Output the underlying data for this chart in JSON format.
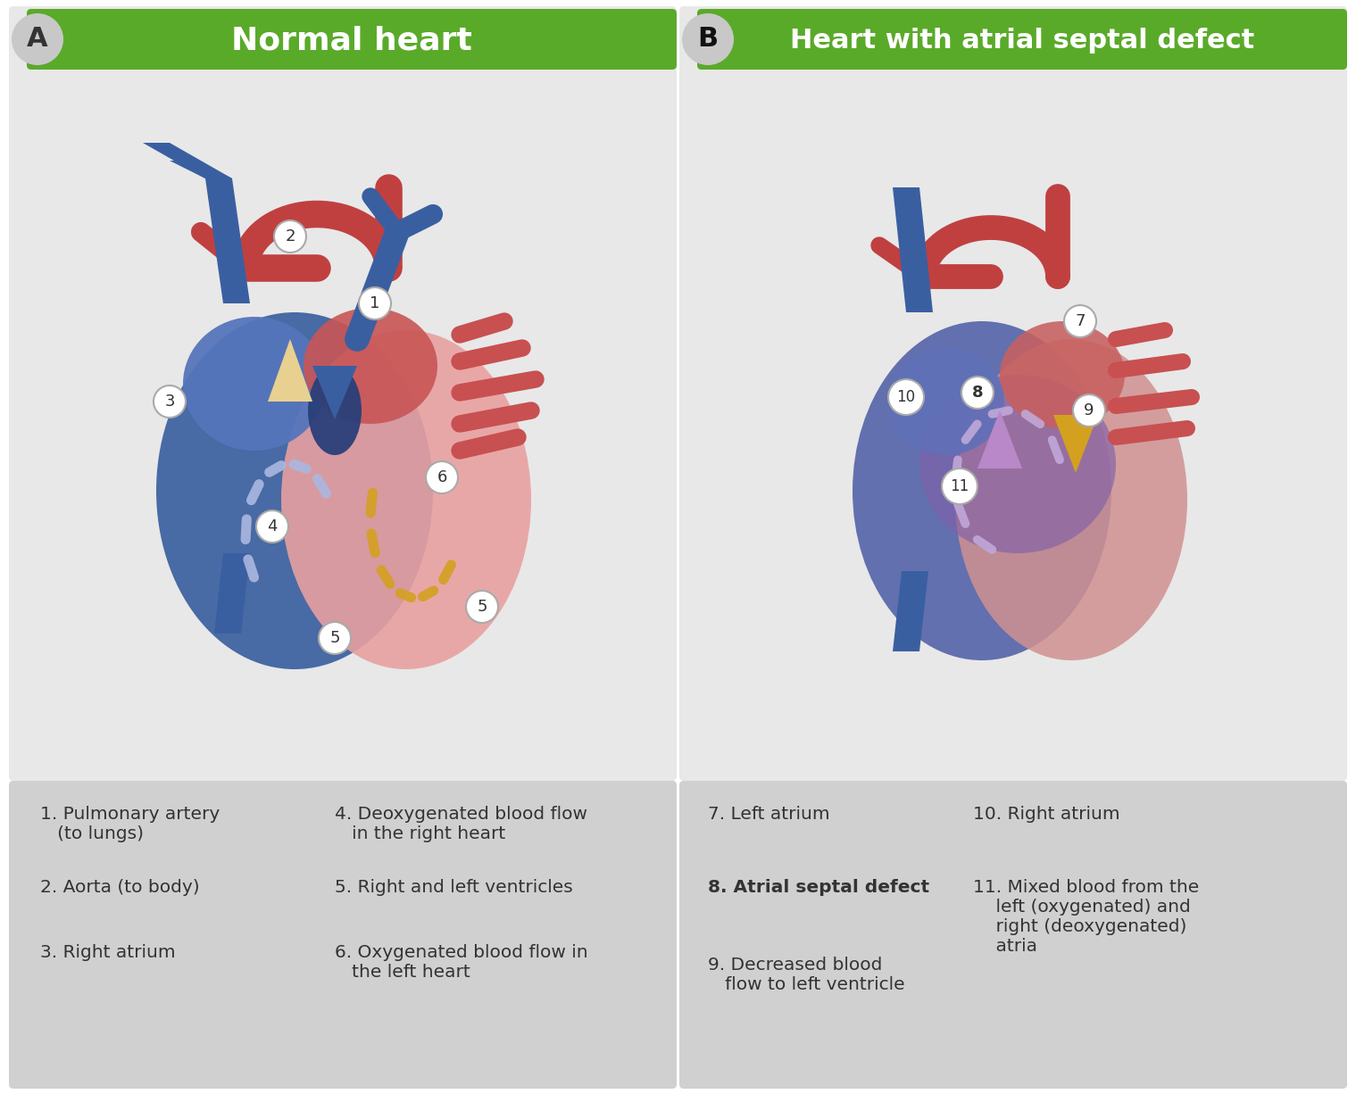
{
  "fig_width": 15.19,
  "fig_height": 12.26,
  "bg_color": "#ffffff",
  "panel_bg": "#e8e8e8",
  "legend_bg": "#d0d0d0",
  "green_header": "#5aaa2a",
  "header_text_color": "#ffffff",
  "label_A": "A",
  "label_B": "B",
  "title_A": "Normal heart",
  "title_B": "Heart with atrial septal defect",
  "blue_color": "#3a5fa0",
  "red_color": "#c94040",
  "pink_color": "#e8a0a0",
  "dark_blue": "#2a3f7a",
  "light_blue": "#7090c8",
  "mixed_purple": "#9060a0",
  "aorta_red": "#c04040",
  "deoxygenated_blue": "#4a5090"
}
